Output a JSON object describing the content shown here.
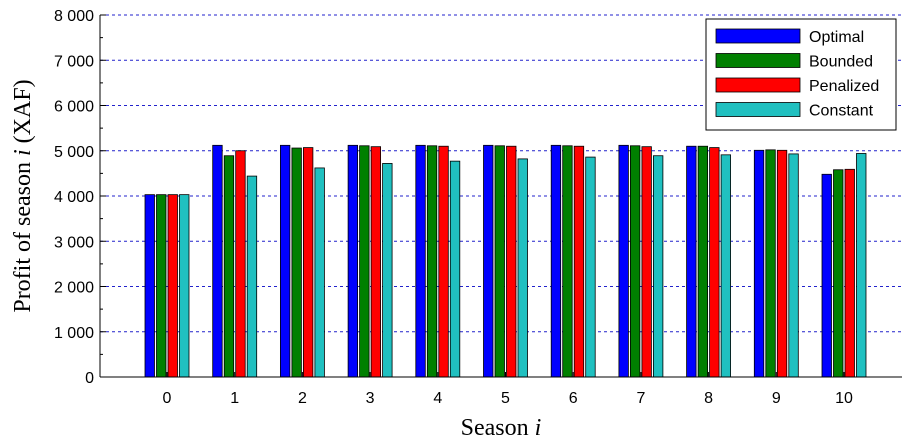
{
  "chart_data": {
    "type": "bar",
    "categories": [
      "0",
      "1",
      "2",
      "3",
      "4",
      "5",
      "6",
      "7",
      "8",
      "9",
      "10"
    ],
    "series": [
      {
        "name": "Optimal",
        "color": "#0000ff",
        "values": [
          4030,
          5120,
          5120,
          5120,
          5120,
          5120,
          5120,
          5120,
          5100,
          5010,
          4480
        ]
      },
      {
        "name": "Bounded",
        "color": "#008000",
        "values": [
          4030,
          4890,
          5060,
          5110,
          5110,
          5110,
          5110,
          5110,
          5100,
          5020,
          4580
        ]
      },
      {
        "name": "Penalized",
        "color": "#ff0000",
        "values": [
          4030,
          5000,
          5070,
          5090,
          5100,
          5100,
          5100,
          5090,
          5070,
          5010,
          4590
        ]
      },
      {
        "name": "Constant",
        "color": "#20c0c0",
        "values": [
          4030,
          4440,
          4620,
          4720,
          4770,
          4820,
          4860,
          4890,
          4910,
          4930,
          4940
        ]
      }
    ],
    "xlabel": "Season i",
    "ylabel": "Profit of season i (XAF)",
    "ylim": [
      0,
      8000
    ],
    "yticks": [
      0,
      1000,
      2000,
      3000,
      4000,
      5000,
      6000,
      7000,
      8000
    ],
    "ytick_labels": [
      "0",
      "1 000",
      "2 000",
      "3 000",
      "4 000",
      "5 000",
      "6 000",
      "7 000",
      "8 000"
    ],
    "grid": true,
    "legend_position": "top-right"
  }
}
